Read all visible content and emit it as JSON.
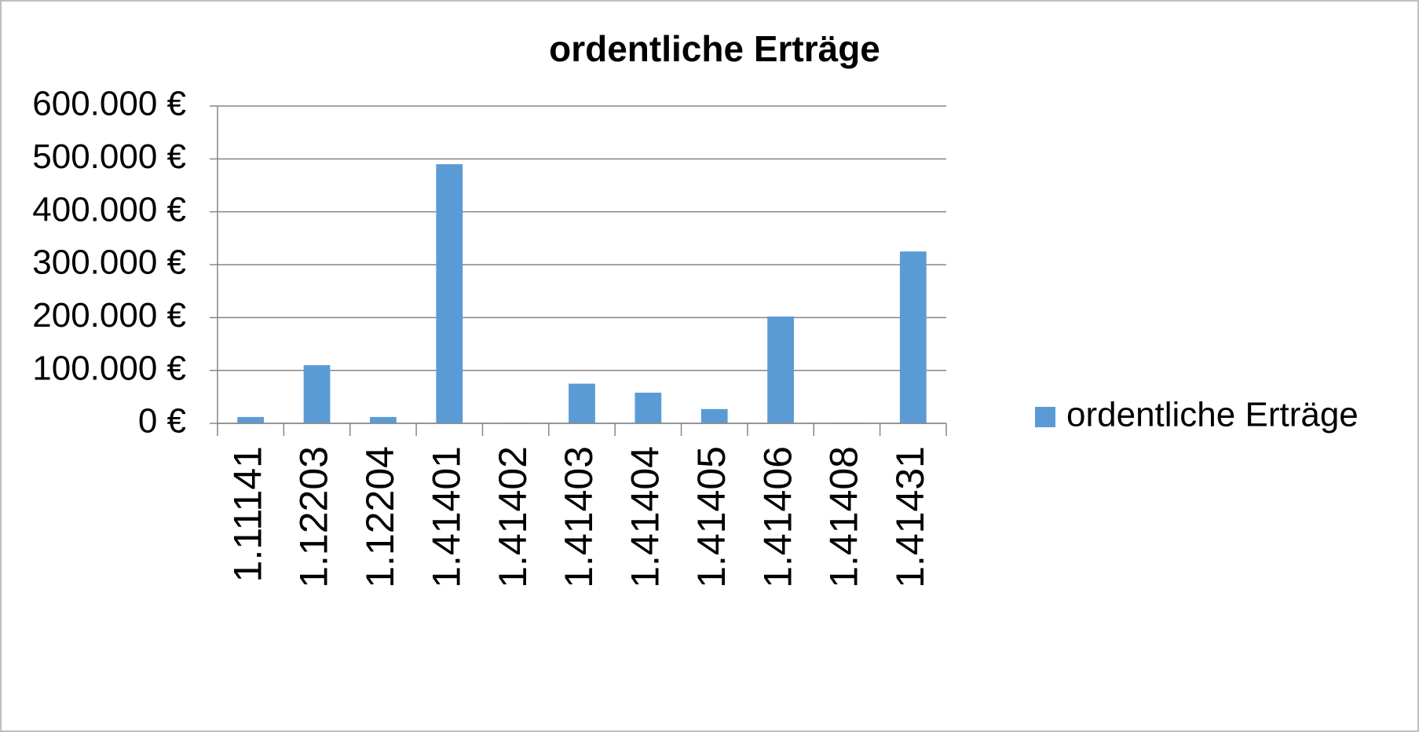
{
  "chart_data": {
    "type": "bar",
    "title": "ordentliche Erträge",
    "categories": [
      "1.11141",
      "1.12203",
      "1.12204",
      "1.41401",
      "1.41402",
      "1.41403",
      "1.41404",
      "1.41405",
      "1.41406",
      "1.41408",
      "1.41431"
    ],
    "series": [
      {
        "name": "ordentliche Erträge",
        "color": "#5b9bd5",
        "values": [
          12000,
          110000,
          12000,
          490000,
          1000,
          75000,
          58000,
          27000,
          202000,
          1000,
          325000
        ]
      }
    ],
    "ylim": [
      0,
      600000
    ],
    "yticks": [
      {
        "value": 0,
        "label": "0 €"
      },
      {
        "value": 100000,
        "label": "100.000 €"
      },
      {
        "value": 200000,
        "label": "200.000 €"
      },
      {
        "value": 300000,
        "label": "300.000 €"
      },
      {
        "value": 400000,
        "label": "400.000 €"
      },
      {
        "value": 500000,
        "label": "500.000 €"
      },
      {
        "value": 600000,
        "label": "600.000 €"
      }
    ],
    "grid": true,
    "legend": "right"
  }
}
